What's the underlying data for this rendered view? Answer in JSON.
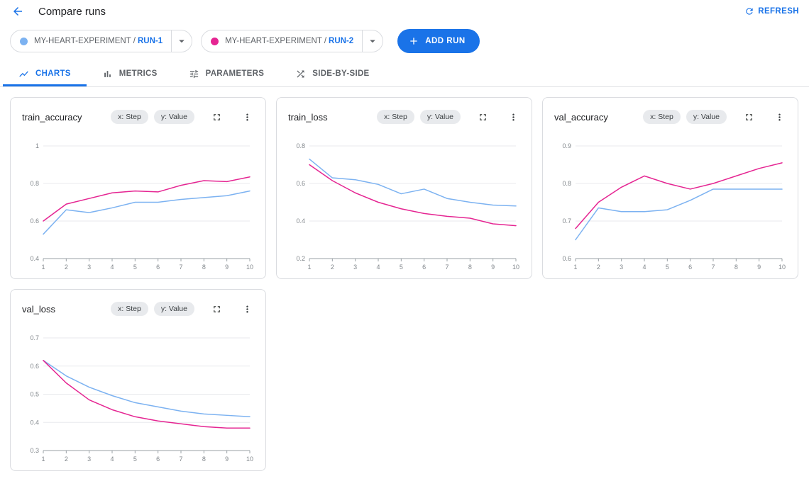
{
  "header": {
    "title": "Compare runs",
    "refresh_label": "REFRESH"
  },
  "run_selector": {
    "runs": [
      {
        "experiment": "MY-HEART-EXPERIMENT",
        "separator": "/",
        "run": "RUN-1",
        "dot_color": "#7cb2f1"
      },
      {
        "experiment": "MY-HEART-EXPERIMENT",
        "separator": "/",
        "run": "RUN-2",
        "dot_color": "#e52592"
      }
    ],
    "add_run_label": "ADD RUN"
  },
  "tabs": [
    {
      "label": "CHARTS",
      "icon": "line-chart-icon",
      "active": true
    },
    {
      "label": "METRICS",
      "icon": "bar-chart-icon",
      "active": false
    },
    {
      "label": "PARAMETERS",
      "icon": "tune-icon",
      "active": false
    },
    {
      "label": "SIDE-BY-SIDE",
      "icon": "shuffle-icon",
      "active": false
    }
  ],
  "colors": {
    "accent": "#1a73e8",
    "run1_series": "#7cb2f1",
    "run2_series": "#e52592",
    "grid": "#e8eaed",
    "axis": "#9aa0a6",
    "tick_text": "#80868b"
  },
  "chart_data": [
    {
      "type": "line",
      "title": "train_accuracy",
      "x_chip": "x: Step",
      "y_chip": "y: Value",
      "xlabel": "Step",
      "ylabel": "Value",
      "x": [
        1,
        2,
        3,
        4,
        5,
        6,
        7,
        8,
        9,
        10
      ],
      "ylim": [
        0.4,
        1.0
      ],
      "yticks": [
        0.4,
        0.6,
        0.8,
        1.0
      ],
      "ytick_labels": [
        "0.4",
        "0.6",
        "0.8",
        "1"
      ],
      "series": [
        {
          "name": "RUN-1",
          "color": "#7cb2f1",
          "values": [
            0.53,
            0.66,
            0.645,
            0.67,
            0.7,
            0.7,
            0.715,
            0.725,
            0.735,
            0.76
          ]
        },
        {
          "name": "RUN-2",
          "color": "#e52592",
          "values": [
            0.6,
            0.69,
            0.72,
            0.75,
            0.76,
            0.755,
            0.79,
            0.815,
            0.81,
            0.835
          ]
        }
      ]
    },
    {
      "type": "line",
      "title": "train_loss",
      "x_chip": "x: Step",
      "y_chip": "y: Value",
      "xlabel": "Step",
      "ylabel": "Value",
      "x": [
        1,
        2,
        3,
        4,
        5,
        6,
        7,
        8,
        9,
        10
      ],
      "ylim": [
        0.2,
        0.8
      ],
      "yticks": [
        0.2,
        0.4,
        0.6,
        0.8
      ],
      "ytick_labels": [
        "0.2",
        "0.4",
        "0.6",
        "0.8"
      ],
      "series": [
        {
          "name": "RUN-1",
          "color": "#7cb2f1",
          "values": [
            0.73,
            0.63,
            0.62,
            0.595,
            0.545,
            0.57,
            0.52,
            0.5,
            0.485,
            0.48
          ]
        },
        {
          "name": "RUN-2",
          "color": "#e52592",
          "values": [
            0.7,
            0.615,
            0.55,
            0.5,
            0.465,
            0.44,
            0.425,
            0.415,
            0.385,
            0.375
          ]
        }
      ]
    },
    {
      "type": "line",
      "title": "val_accuracy",
      "x_chip": "x: Step",
      "y_chip": "y: Value",
      "xlabel": "Step",
      "ylabel": "Value",
      "x": [
        1,
        2,
        3,
        4,
        5,
        6,
        7,
        8,
        9,
        10
      ],
      "ylim": [
        0.6,
        0.9
      ],
      "yticks": [
        0.6,
        0.7,
        0.8,
        0.9
      ],
      "ytick_labels": [
        "0.6",
        "0.7",
        "0.8",
        "0.9"
      ],
      "series": [
        {
          "name": "RUN-1",
          "color": "#7cb2f1",
          "values": [
            0.65,
            0.735,
            0.725,
            0.725,
            0.73,
            0.755,
            0.785,
            0.785,
            0.785,
            0.785
          ]
        },
        {
          "name": "RUN-2",
          "color": "#e52592",
          "values": [
            0.68,
            0.75,
            0.79,
            0.82,
            0.8,
            0.785,
            0.8,
            0.82,
            0.84,
            0.855
          ]
        }
      ]
    },
    {
      "type": "line",
      "title": "val_loss",
      "x_chip": "x: Step",
      "y_chip": "y: Value",
      "xlabel": "Step",
      "ylabel": "Value",
      "x": [
        1,
        2,
        3,
        4,
        5,
        6,
        7,
        8,
        9,
        10
      ],
      "ylim": [
        0.3,
        0.7
      ],
      "yticks": [
        0.3,
        0.4,
        0.5,
        0.6,
        0.7
      ],
      "ytick_labels": [
        "0.3",
        "0.4",
        "0.5",
        "0.6",
        "0.7"
      ],
      "series": [
        {
          "name": "RUN-1",
          "color": "#7cb2f1",
          "values": [
            0.62,
            0.565,
            0.525,
            0.495,
            0.47,
            0.455,
            0.44,
            0.43,
            0.425,
            0.42
          ]
        },
        {
          "name": "RUN-2",
          "color": "#e52592",
          "values": [
            0.62,
            0.54,
            0.48,
            0.445,
            0.42,
            0.405,
            0.395,
            0.385,
            0.38,
            0.38
          ]
        }
      ]
    }
  ]
}
